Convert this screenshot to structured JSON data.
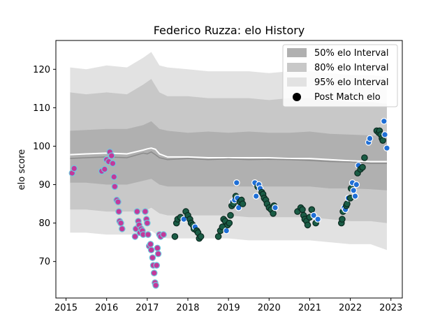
{
  "chart_data": {
    "type": "line",
    "title": "Federico Ruzza: elo History",
    "xlabel": "",
    "ylabel": "elo score",
    "xlim": [
      2014.75,
      2023.28
    ],
    "ylim": [
      60.5,
      127.5
    ],
    "x_ticks": [
      "2015",
      "2016",
      "2017",
      "2018",
      "2019",
      "2020",
      "2021",
      "2022",
      "2023"
    ],
    "y_ticks": [
      "70",
      "80",
      "90",
      "100",
      "110",
      "120"
    ],
    "legend": {
      "placement": "top-right",
      "entries": [
        "50% elo Interval",
        "80% elo Interval",
        "95% elo Interval",
        "Post Match elo"
      ]
    },
    "grid": false,
    "colors": {
      "band50": "#b0b0b0",
      "band80": "#c8c8c8",
      "band95": "#e2e2e2",
      "mean_line": "#8c8c8c",
      "white_line": "#ffffff",
      "period1_fill": "#c2399b",
      "period1_edge": "#6ec9de",
      "period2_fill": "#1a5c45",
      "period2_edge": "#0b2a20",
      "highlight_fill": "#1f6fd6",
      "highlight_edge": "#ffffff"
    },
    "series": [
      {
        "name": "50% elo Interval",
        "x": [
          2015.1,
          2015.5,
          2016.0,
          2016.5,
          2016.9,
          2017.1,
          2017.3,
          2017.5,
          2018.0,
          2018.5,
          2019.0,
          2019.5,
          2020.0,
          2020.5,
          2021.0,
          2021.5,
          2022.0,
          2022.5,
          2022.9
        ],
        "upper": [
          104,
          104.2,
          104.5,
          104.5,
          105.5,
          106.5,
          104.5,
          104,
          103.5,
          103.8,
          103.5,
          103.8,
          103.5,
          103.5,
          103.8,
          103.2,
          103,
          102.8,
          102.5
        ],
        "lower": [
          90.5,
          90.5,
          90,
          90,
          91,
          91.5,
          90,
          89.5,
          89.5,
          89.5,
          89.5,
          89.5,
          89.5,
          89.5,
          89.5,
          89,
          89,
          88.8,
          88.5
        ]
      },
      {
        "name": "80% elo Interval",
        "x": [
          2015.1,
          2015.5,
          2016.0,
          2016.5,
          2016.9,
          2017.1,
          2017.3,
          2017.5,
          2018.0,
          2018.5,
          2019.0,
          2019.5,
          2020.0,
          2020.5,
          2021.0,
          2021.5,
          2022.0,
          2022.5,
          2022.9
        ],
        "upper": [
          114,
          113.5,
          114,
          113.5,
          116,
          117.5,
          114,
          113,
          113,
          112.5,
          112.5,
          112.5,
          112,
          112.5,
          112.5,
          112,
          111.5,
          111.5,
          111
        ],
        "lower": [
          83.5,
          83.5,
          83,
          83,
          83,
          84,
          82.5,
          82,
          82,
          82,
          82,
          81.5,
          81.5,
          81.5,
          81.5,
          81,
          80.5,
          80.5,
          80
        ]
      },
      {
        "name": "95% elo Interval",
        "x": [
          2015.1,
          2015.5,
          2016.0,
          2016.5,
          2016.9,
          2017.1,
          2017.3,
          2017.5,
          2018.0,
          2018.5,
          2019.0,
          2019.5,
          2020.0,
          2020.5,
          2021.0,
          2021.5,
          2022.0,
          2022.5,
          2022.9
        ],
        "upper": [
          120.5,
          120,
          121,
          120.5,
          123,
          124.5,
          121,
          120.5,
          120,
          119.5,
          119.5,
          119.5,
          119,
          119.5,
          119.5,
          119,
          118.5,
          118.5,
          118
        ],
        "lower": [
          77.5,
          77.5,
          77,
          77,
          77,
          78,
          76.5,
          76,
          76,
          76,
          76,
          75.5,
          75.5,
          75.5,
          75.5,
          75,
          74.5,
          74.5,
          73
        ]
      },
      {
        "name": "mean",
        "x": [
          2015.1,
          2015.5,
          2016.0,
          2016.5,
          2016.9,
          2017.0,
          2017.1,
          2017.2,
          2017.3,
          2017.5,
          2018.0,
          2018.5,
          2019.0,
          2019.5,
          2020.0,
          2020.5,
          2021.0,
          2021.5,
          2022.0,
          2022.5,
          2022.9
        ],
        "y": [
          96.8,
          97,
          97.2,
          97,
          98.2,
          98,
          98.5,
          97.8,
          97,
          96.5,
          96.8,
          96.5,
          96.7,
          96.5,
          96.6,
          96.5,
          96.3,
          96,
          95.9,
          95.5,
          95.5
        ]
      },
      {
        "name": "white",
        "x": [
          2015.1,
          2015.5,
          2016.0,
          2016.5,
          2016.9,
          2017.0,
          2017.1,
          2017.2,
          2017.3,
          2017.5,
          2018.0,
          2018.5,
          2019.0,
          2019.5,
          2020.0,
          2020.5,
          2021.0,
          2021.5,
          2022.0,
          2022.5,
          2022.9
        ],
        "y": [
          97.8,
          98,
          98.2,
          98,
          99,
          99.3,
          99.5,
          99.2,
          98,
          97.2,
          97.2,
          97,
          97,
          97,
          97,
          96.8,
          96.8,
          96.5,
          96.2,
          96,
          96
        ]
      },
      {
        "name": "Post Match elo",
        "points": [
          [
            2015.15,
            93.0,
            "p1"
          ],
          [
            2015.2,
            94.2,
            "p1"
          ],
          [
            2015.88,
            93.5,
            "p1"
          ],
          [
            2015.95,
            94.0,
            "p1"
          ],
          [
            2016.0,
            96.5,
            "p1"
          ],
          [
            2016.05,
            96.0,
            "p1"
          ],
          [
            2016.08,
            98.5,
            "p1"
          ],
          [
            2016.12,
            97.5,
            "p1"
          ],
          [
            2016.15,
            95.5,
            "p1"
          ],
          [
            2016.18,
            92.0,
            "p1"
          ],
          [
            2016.2,
            89.5,
            "p1"
          ],
          [
            2016.25,
            86.0,
            "p1"
          ],
          [
            2016.28,
            85.5,
            "p1"
          ],
          [
            2016.3,
            83.0,
            "p1"
          ],
          [
            2016.32,
            80.5,
            "p1"
          ],
          [
            2016.35,
            80.0,
            "p1"
          ],
          [
            2016.38,
            78.5,
            "p1"
          ],
          [
            2016.7,
            76.5,
            "p1"
          ],
          [
            2016.72,
            78.5,
            "p1"
          ],
          [
            2016.75,
            83.0,
            "p1"
          ],
          [
            2016.78,
            80.5,
            "p1"
          ],
          [
            2016.8,
            79.5,
            "p1"
          ],
          [
            2016.82,
            77.5,
            "p1"
          ],
          [
            2016.85,
            78.5,
            "p1"
          ],
          [
            2016.88,
            78.0,
            "p1"
          ],
          [
            2016.9,
            77.0,
            "p1"
          ],
          [
            2016.95,
            83.0,
            "p1"
          ],
          [
            2016.98,
            81.0,
            "p1"
          ],
          [
            2017.0,
            80.0,
            "p1"
          ],
          [
            2017.02,
            77.0,
            "p1"
          ],
          [
            2017.05,
            74.0,
            "p1"
          ],
          [
            2017.08,
            74.5,
            "p1"
          ],
          [
            2017.1,
            73.0,
            "p1"
          ],
          [
            2017.13,
            71.0,
            "p1"
          ],
          [
            2017.15,
            69.0,
            "p1"
          ],
          [
            2017.17,
            67.0,
            "p1"
          ],
          [
            2017.19,
            64.5,
            "p1"
          ],
          [
            2017.21,
            63.8,
            "p1"
          ],
          [
            2017.23,
            69.0,
            "p1"
          ],
          [
            2017.25,
            73.5,
            "p1"
          ],
          [
            2017.27,
            72.0,
            "p1"
          ],
          [
            2017.3,
            77.0,
            "p1"
          ],
          [
            2017.33,
            76.5,
            "p1"
          ],
          [
            2017.4,
            77.0,
            "p1"
          ],
          [
            2017.68,
            76.5,
            "p2"
          ],
          [
            2017.72,
            80.0,
            "p2"
          ],
          [
            2017.75,
            81.0,
            "p2"
          ],
          [
            2017.82,
            81.5,
            "p2"
          ],
          [
            2017.9,
            81.0,
            "h"
          ],
          [
            2017.95,
            83.0,
            "p2"
          ],
          [
            2018.0,
            82.0,
            "p2"
          ],
          [
            2018.05,
            81.0,
            "p2"
          ],
          [
            2018.08,
            80.0,
            "p2"
          ],
          [
            2018.12,
            79.5,
            "p2"
          ],
          [
            2018.15,
            78.5,
            "p2"
          ],
          [
            2018.18,
            79.0,
            "h"
          ],
          [
            2018.22,
            78.0,
            "p2"
          ],
          [
            2018.25,
            77.5,
            "p2"
          ],
          [
            2018.28,
            76.0,
            "p2"
          ],
          [
            2018.32,
            76.5,
            "p2"
          ],
          [
            2018.75,
            76.5,
            "p2"
          ],
          [
            2018.8,
            78.0,
            "p2"
          ],
          [
            2018.85,
            79.0,
            "p2"
          ],
          [
            2018.88,
            81.0,
            "p2"
          ],
          [
            2018.92,
            80.5,
            "p2"
          ],
          [
            2018.95,
            78.0,
            "h"
          ],
          [
            2018.98,
            79.5,
            "p2"
          ],
          [
            2019.02,
            80.0,
            "p2"
          ],
          [
            2019.05,
            82.0,
            "p2"
          ],
          [
            2019.08,
            84.5,
            "p2"
          ],
          [
            2019.1,
            85.5,
            "h"
          ],
          [
            2019.12,
            85.0,
            "p2"
          ],
          [
            2019.15,
            86.0,
            "h"
          ],
          [
            2019.18,
            87.0,
            "p2"
          ],
          [
            2019.2,
            90.5,
            "h"
          ],
          [
            2019.22,
            86.5,
            "h"
          ],
          [
            2019.25,
            84.0,
            "h"
          ],
          [
            2019.28,
            85.5,
            "p2"
          ],
          [
            2019.32,
            86.0,
            "p2"
          ],
          [
            2019.35,
            85.0,
            "p2"
          ],
          [
            2019.65,
            90.5,
            "h"
          ],
          [
            2019.68,
            87.0,
            "h"
          ],
          [
            2019.72,
            89.5,
            "p2"
          ],
          [
            2019.75,
            90.0,
            "h"
          ],
          [
            2019.78,
            89.0,
            "h"
          ],
          [
            2019.82,
            88.0,
            "p2"
          ],
          [
            2019.85,
            87.5,
            "p2"
          ],
          [
            2019.88,
            86.5,
            "p2"
          ],
          [
            2019.92,
            86.0,
            "p2"
          ],
          [
            2019.95,
            85.0,
            "p2"
          ],
          [
            2020.0,
            84.0,
            "p2"
          ],
          [
            2020.05,
            83.5,
            "p2"
          ],
          [
            2020.1,
            82.5,
            "p2"
          ],
          [
            2020.12,
            84.5,
            "p2"
          ],
          [
            2020.15,
            84.0,
            "h"
          ],
          [
            2020.7,
            83.0,
            "p2"
          ],
          [
            2020.78,
            84.0,
            "p2"
          ],
          [
            2020.82,
            83.5,
            "p2"
          ],
          [
            2020.85,
            82.0,
            "p2"
          ],
          [
            2020.88,
            81.0,
            "p2"
          ],
          [
            2020.92,
            80.5,
            "p2"
          ],
          [
            2020.95,
            79.5,
            "p2"
          ],
          [
            2021.0,
            81.5,
            "p2"
          ],
          [
            2021.05,
            83.5,
            "p2"
          ],
          [
            2021.1,
            82.0,
            "h"
          ],
          [
            2021.15,
            80.0,
            "p2"
          ],
          [
            2021.2,
            81.0,
            "h"
          ],
          [
            2021.78,
            80.0,
            "p2"
          ],
          [
            2021.8,
            81.0,
            "p2"
          ],
          [
            2021.82,
            83.0,
            "p2"
          ],
          [
            2021.85,
            84.0,
            "h"
          ],
          [
            2021.88,
            83.5,
            "h"
          ],
          [
            2021.9,
            84.5,
            "p2"
          ],
          [
            2021.92,
            85.0,
            "p2"
          ],
          [
            2021.95,
            86.5,
            "h"
          ],
          [
            2022.0,
            86.5,
            "p2"
          ],
          [
            2022.02,
            89.0,
            "p2"
          ],
          [
            2022.05,
            90.5,
            "h"
          ],
          [
            2022.08,
            88.5,
            "h"
          ],
          [
            2022.12,
            87.0,
            "h"
          ],
          [
            2022.15,
            90.0,
            "h"
          ],
          [
            2022.18,
            93.0,
            "p2"
          ],
          [
            2022.2,
            95.0,
            "h"
          ],
          [
            2022.25,
            94.0,
            "p2"
          ],
          [
            2022.3,
            94.5,
            "p2"
          ],
          [
            2022.35,
            97.0,
            "p2"
          ],
          [
            2022.45,
            101.0,
            "h"
          ],
          [
            2022.48,
            102.0,
            "h"
          ],
          [
            2022.65,
            104.0,
            "p2"
          ],
          [
            2022.7,
            103.5,
            "p2"
          ],
          [
            2022.72,
            104.0,
            "p2"
          ],
          [
            2022.75,
            103.0,
            "p2"
          ],
          [
            2022.78,
            102.0,
            "p2"
          ],
          [
            2022.8,
            101.5,
            "p2"
          ],
          [
            2022.83,
            106.5,
            "h"
          ],
          [
            2022.85,
            103.0,
            "h"
          ],
          [
            2022.9,
            99.5,
            "h"
          ]
        ]
      }
    ]
  }
}
